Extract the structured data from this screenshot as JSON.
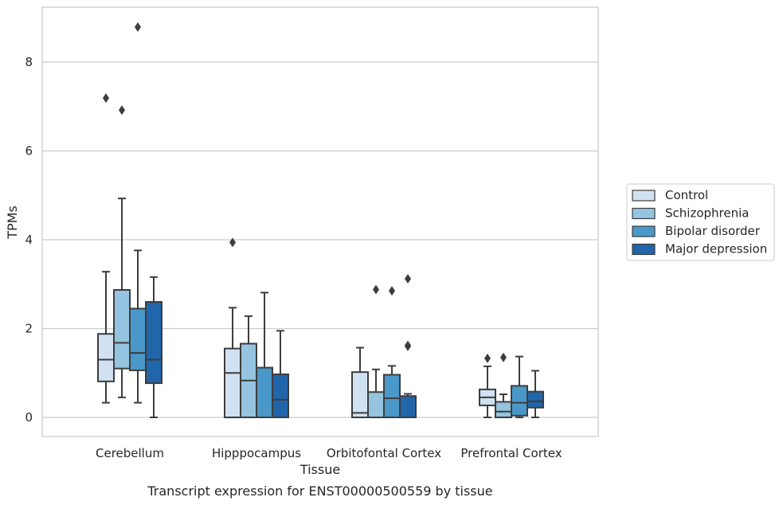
{
  "chart_data": {
    "type": "boxplot",
    "caption": "Transcript expression for ENST00000500559 by tissue",
    "xlabel": "Tissue",
    "ylabel": "TPMs",
    "ylim": [
      -0.42,
      9.3
    ],
    "yticks": [
      0,
      2,
      4,
      6,
      8
    ],
    "grid": "horizontal",
    "legend_position": "right",
    "categories": [
      "Cerebellum",
      "Hipppocampus",
      "Orbitofontal Cortex",
      "Prefrontal Cortex"
    ],
    "series": [
      {
        "name": "Control",
        "color": "#d0e1f2",
        "boxes": [
          {
            "whislo": 0.33,
            "q1": 0.81,
            "med": 1.3,
            "q3": 1.88,
            "whishi": 3.28,
            "fliers": [
              7.19
            ]
          },
          {
            "whislo": 0.0,
            "q1": 0.0,
            "med": 1.0,
            "q3": 1.55,
            "whishi": 2.47,
            "fliers": [
              3.94
            ]
          },
          {
            "whislo": 0.0,
            "q1": 0.0,
            "med": 0.1,
            "q3": 1.02,
            "whishi": 1.57,
            "fliers": []
          },
          {
            "whislo": 0.0,
            "q1": 0.27,
            "med": 0.45,
            "q3": 0.63,
            "whishi": 1.15,
            "fliers": [
              1.33
            ]
          }
        ]
      },
      {
        "name": "Schizophrenia",
        "color": "#94c4df",
        "boxes": [
          {
            "whislo": 0.45,
            "q1": 1.1,
            "med": 1.68,
            "q3": 2.87,
            "whishi": 4.93,
            "fliers": [
              6.92
            ]
          },
          {
            "whislo": 0.0,
            "q1": 0.0,
            "med": 0.83,
            "q3": 1.66,
            "whishi": 2.28,
            "fliers": []
          },
          {
            "whislo": 0.0,
            "q1": 0.0,
            "med": 0.0,
            "q3": 0.57,
            "whishi": 1.08,
            "fliers": [
              2.88
            ]
          },
          {
            "whislo": 0.0,
            "q1": 0.0,
            "med": 0.13,
            "q3": 0.35,
            "whishi": 0.52,
            "fliers": [
              1.35
            ]
          }
        ]
      },
      {
        "name": "Bipolar disorder",
        "color": "#4a98c9",
        "boxes": [
          {
            "whislo": 0.33,
            "q1": 1.06,
            "med": 1.45,
            "q3": 2.45,
            "whishi": 3.76,
            "fliers": [
              8.79
            ]
          },
          {
            "whislo": 0.0,
            "q1": 0.0,
            "med": 0.0,
            "q3": 1.12,
            "whishi": 2.81,
            "fliers": []
          },
          {
            "whislo": 0.0,
            "q1": 0.0,
            "med": 0.43,
            "q3": 0.96,
            "whishi": 1.16,
            "fliers": [
              2.85
            ]
          },
          {
            "whislo": 0.0,
            "q1": 0.04,
            "med": 0.33,
            "q3": 0.71,
            "whishi": 1.37,
            "fliers": []
          }
        ]
      },
      {
        "name": "Major depression",
        "color": "#2165ab",
        "boxes": [
          {
            "whislo": 0.0,
            "q1": 0.77,
            "med": 1.3,
            "q3": 2.6,
            "whishi": 3.16,
            "fliers": []
          },
          {
            "whislo": 0.0,
            "q1": 0.0,
            "med": 0.4,
            "q3": 0.97,
            "whishi": 1.95,
            "fliers": []
          },
          {
            "whislo": 0.0,
            "q1": 0.0,
            "med": 0.0,
            "q3": 0.48,
            "whishi": 0.53,
            "fliers": [
              1.6,
              1.62,
              3.12
            ]
          },
          {
            "whislo": 0.0,
            "q1": 0.22,
            "med": 0.36,
            "q3": 0.58,
            "whishi": 1.05,
            "fliers": []
          }
        ]
      }
    ]
  }
}
